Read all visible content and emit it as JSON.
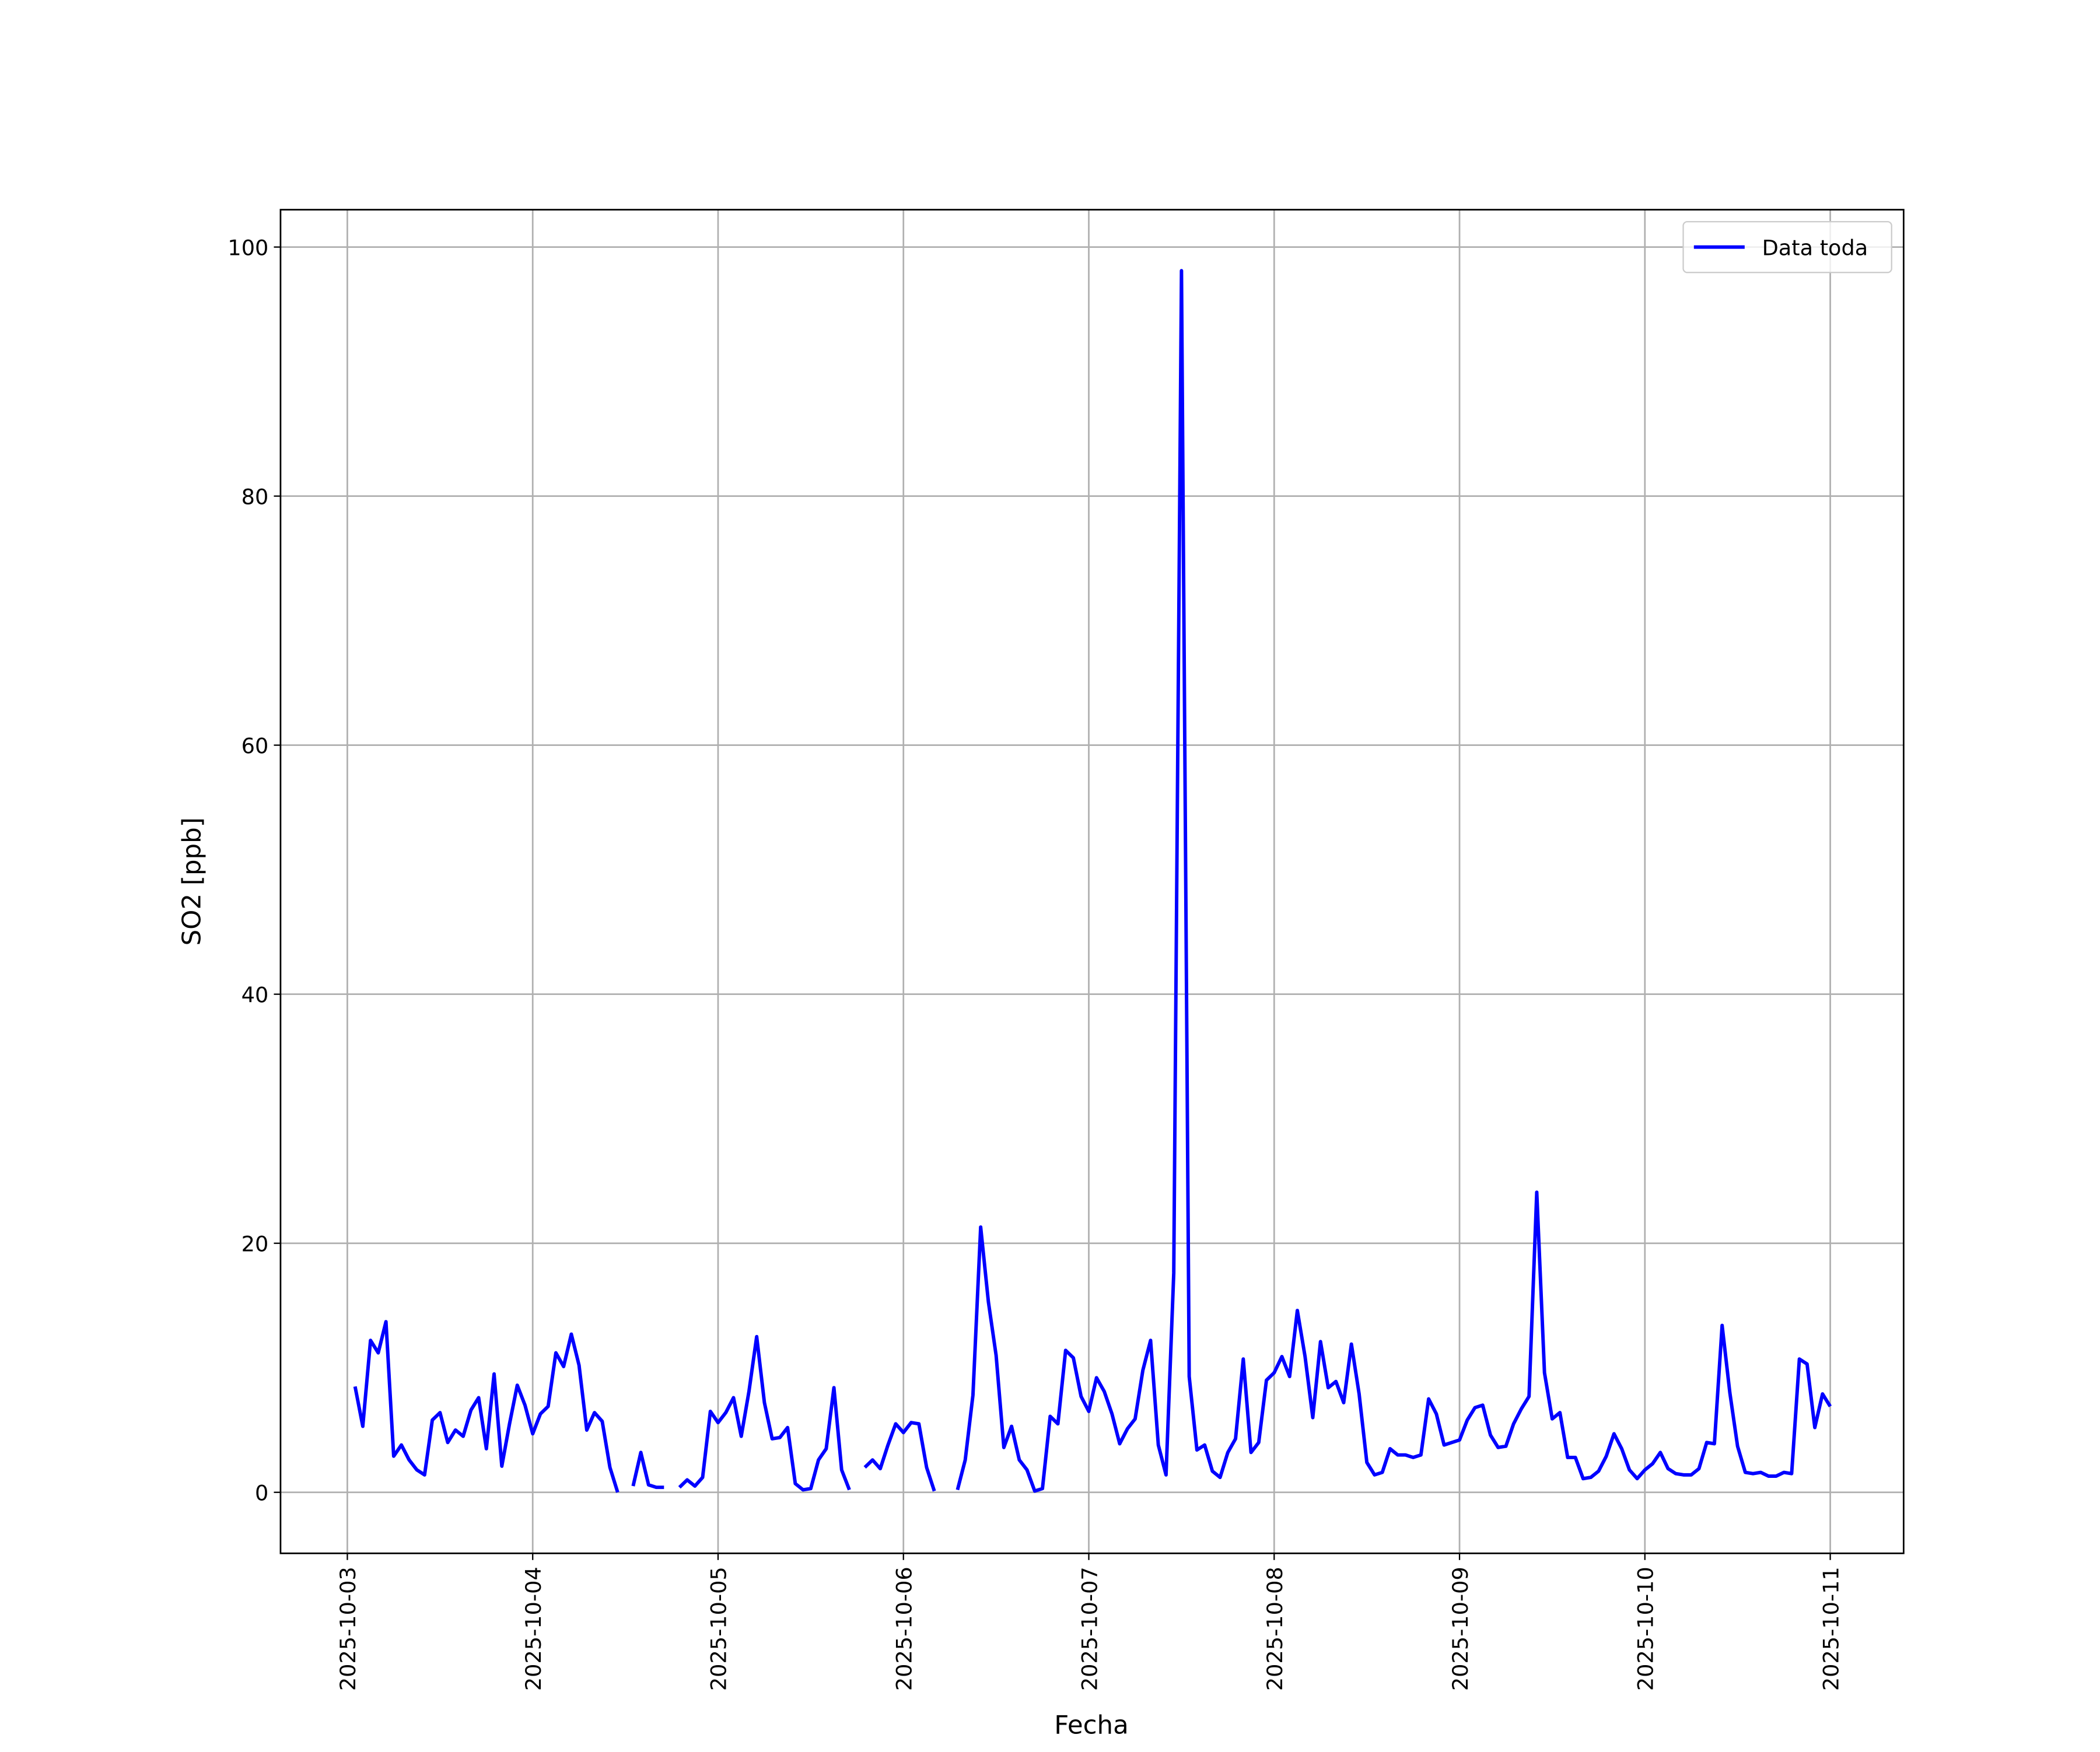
{
  "chart_data": {
    "type": "line",
    "xlabel": "Fecha",
    "ylabel": "SO2 [ppb]",
    "x": [
      "2025-10-03 01:00",
      "2025-10-03 02:00",
      "2025-10-03 03:00",
      "2025-10-03 04:00",
      "2025-10-03 05:00",
      "2025-10-03 06:00",
      "2025-10-03 07:00",
      "2025-10-03 08:00",
      "2025-10-03 09:00",
      "2025-10-03 10:00",
      "2025-10-03 11:00",
      "2025-10-03 12:00",
      "2025-10-03 13:00",
      "2025-10-03 14:00",
      "2025-10-03 15:00",
      "2025-10-03 16:00",
      "2025-10-03 17:00",
      "2025-10-03 18:00",
      "2025-10-03 19:00",
      "2025-10-03 20:00",
      "2025-10-03 21:00",
      "2025-10-03 22:00",
      "2025-10-03 23:00",
      "2025-10-04 00:00",
      "2025-10-04 01:00",
      "2025-10-04 02:00",
      "2025-10-04 03:00",
      "2025-10-04 04:00",
      "2025-10-04 05:00",
      "2025-10-04 06:00",
      "2025-10-04 07:00",
      "2025-10-04 08:00",
      "2025-10-04 09:00",
      "2025-10-04 10:00",
      "2025-10-04 11:00",
      "2025-10-04 12:00",
      "2025-10-04 13:00",
      "2025-10-04 14:00",
      "2025-10-04 15:00",
      "2025-10-04 16:00",
      "2025-10-04 17:00",
      "2025-10-04 18:00",
      "2025-10-04 19:00",
      "2025-10-04 20:00",
      "2025-10-04 21:00",
      "2025-10-04 22:00",
      "2025-10-04 23:00",
      "2025-10-05 00:00",
      "2025-10-05 01:00",
      "2025-10-05 02:00",
      "2025-10-05 03:00",
      "2025-10-05 04:00",
      "2025-10-05 05:00",
      "2025-10-05 06:00",
      "2025-10-05 07:00",
      "2025-10-05 08:00",
      "2025-10-05 09:00",
      "2025-10-05 10:00",
      "2025-10-05 11:00",
      "2025-10-05 12:00",
      "2025-10-05 13:00",
      "2025-10-05 14:00",
      "2025-10-05 15:00",
      "2025-10-05 16:00",
      "2025-10-05 17:00",
      "2025-10-05 18:00",
      "2025-10-05 19:00",
      "2025-10-05 20:00",
      "2025-10-05 21:00",
      "2025-10-05 22:00",
      "2025-10-05 23:00",
      "2025-10-06 00:00",
      "2025-10-06 01:00",
      "2025-10-06 02:00",
      "2025-10-06 03:00",
      "2025-10-06 04:00",
      "2025-10-06 05:00",
      "2025-10-06 06:00",
      "2025-10-06 07:00",
      "2025-10-06 08:00",
      "2025-10-06 09:00",
      "2025-10-06 10:00",
      "2025-10-06 11:00",
      "2025-10-06 12:00",
      "2025-10-06 13:00",
      "2025-10-06 14:00",
      "2025-10-06 15:00",
      "2025-10-06 16:00",
      "2025-10-06 17:00",
      "2025-10-06 18:00",
      "2025-10-06 19:00",
      "2025-10-06 20:00",
      "2025-10-06 21:00",
      "2025-10-06 22:00",
      "2025-10-06 23:00",
      "2025-10-07 00:00",
      "2025-10-07 01:00",
      "2025-10-07 02:00",
      "2025-10-07 03:00",
      "2025-10-07 04:00",
      "2025-10-07 05:00",
      "2025-10-07 06:00",
      "2025-10-07 07:00",
      "2025-10-07 08:00",
      "2025-10-07 09:00",
      "2025-10-07 10:00",
      "2025-10-07 11:00",
      "2025-10-07 12:00",
      "2025-10-07 13:00",
      "2025-10-07 14:00",
      "2025-10-07 15:00",
      "2025-10-07 16:00",
      "2025-10-07 17:00",
      "2025-10-07 18:00",
      "2025-10-07 19:00",
      "2025-10-07 20:00",
      "2025-10-07 21:00",
      "2025-10-07 22:00",
      "2025-10-07 23:00",
      "2025-10-08 00:00",
      "2025-10-08 01:00",
      "2025-10-08 02:00",
      "2025-10-08 03:00",
      "2025-10-08 04:00",
      "2025-10-08 05:00",
      "2025-10-08 06:00",
      "2025-10-08 07:00",
      "2025-10-08 08:00",
      "2025-10-08 09:00",
      "2025-10-08 10:00",
      "2025-10-08 11:00",
      "2025-10-08 12:00",
      "2025-10-08 13:00",
      "2025-10-08 14:00",
      "2025-10-08 15:00",
      "2025-10-08 16:00",
      "2025-10-08 17:00",
      "2025-10-08 18:00",
      "2025-10-08 19:00",
      "2025-10-08 20:00",
      "2025-10-08 21:00",
      "2025-10-08 22:00",
      "2025-10-08 23:00",
      "2025-10-09 00:00",
      "2025-10-09 01:00",
      "2025-10-09 02:00",
      "2025-10-09 03:00",
      "2025-10-09 04:00",
      "2025-10-09 05:00",
      "2025-10-09 06:00",
      "2025-10-09 07:00",
      "2025-10-09 08:00",
      "2025-10-09 09:00",
      "2025-10-09 10:00",
      "2025-10-09 11:00",
      "2025-10-09 12:00",
      "2025-10-09 13:00",
      "2025-10-09 14:00",
      "2025-10-09 15:00",
      "2025-10-09 16:00",
      "2025-10-09 17:00",
      "2025-10-09 18:00",
      "2025-10-09 19:00",
      "2025-10-09 20:00",
      "2025-10-09 21:00",
      "2025-10-09 22:00",
      "2025-10-09 23:00",
      "2025-10-10 00:00",
      "2025-10-10 01:00",
      "2025-10-10 02:00",
      "2025-10-10 03:00",
      "2025-10-10 04:00",
      "2025-10-10 05:00",
      "2025-10-10 06:00",
      "2025-10-10 07:00",
      "2025-10-10 08:00",
      "2025-10-10 09:00",
      "2025-10-10 10:00",
      "2025-10-10 11:00",
      "2025-10-10 12:00",
      "2025-10-10 13:00",
      "2025-10-10 14:00",
      "2025-10-10 15:00",
      "2025-10-10 16:00",
      "2025-10-10 17:00",
      "2025-10-10 18:00",
      "2025-10-10 19:00",
      "2025-10-10 20:00",
      "2025-10-10 21:00",
      "2025-10-10 22:00",
      "2025-10-10 23:00",
      "2025-10-11 00:00"
    ],
    "series": [
      {
        "name": "Data toda",
        "color": "#0000ff",
        "values": [
          8.5,
          5.3,
          12.2,
          11.2,
          13.7,
          2.9,
          3.8,
          2.6,
          1.8,
          1.4,
          5.8,
          6.4,
          4.0,
          5.0,
          4.5,
          6.6,
          7.6,
          3.5,
          9.5,
          2.1,
          5.5,
          8.6,
          7.0,
          4.7,
          6.3,
          6.9,
          11.2,
          10.1,
          12.7,
          10.2,
          5.0,
          6.4,
          5.7,
          2.0,
          0.0,
          null,
          0.5,
          3.2,
          0.6,
          0.4,
          0.4,
          null,
          0.4,
          1.0,
          0.5,
          1.2,
          6.5,
          5.6,
          6.4,
          7.6,
          4.5,
          8.1,
          12.5,
          7.2,
          4.3,
          4.4,
          5.2,
          0.7,
          0.2,
          0.3,
          2.6,
          3.5,
          8.4,
          1.8,
          0.2,
          null,
          2.0,
          2.6,
          1.9,
          3.8,
          5.5,
          4.8,
          5.6,
          5.5,
          2.0,
          0.1,
          null,
          null,
          0.2,
          2.6,
          7.8,
          21.3,
          15.3,
          11.0,
          3.6,
          5.3,
          2.6,
          1.8,
          0.1,
          0.3,
          6.1,
          5.5,
          11.4,
          10.8,
          7.7,
          6.5,
          9.2,
          8.1,
          6.3,
          3.9,
          5.1,
          5.9,
          9.8,
          12.2,
          3.8,
          1.4,
          17.6,
          98.1,
          9.3,
          3.4,
          3.8,
          1.7,
          1.2,
          3.2,
          4.3,
          10.7,
          3.2,
          4.0,
          9.0,
          9.6,
          10.9,
          9.3,
          14.6,
          10.9,
          6.0,
          12.1,
          8.4,
          8.9,
          7.2,
          11.9,
          7.9,
          2.4,
          1.4,
          1.6,
          3.5,
          3.0,
          3.0,
          2.8,
          3.0,
          7.5,
          6.3,
          3.8,
          4.0,
          4.2,
          5.8,
          6.8,
          7.0,
          4.6,
          3.6,
          3.7,
          5.5,
          6.7,
          7.7,
          24.1,
          9.6,
          5.9,
          6.4,
          2.8,
          2.8,
          1.1,
          1.2,
          1.7,
          2.9,
          4.7,
          3.5,
          1.8,
          1.1,
          1.8,
          2.3,
          3.2,
          1.9,
          1.5,
          1.4,
          1.4,
          1.9,
          4.0,
          3.9,
          13.4,
          8.0,
          3.7,
          1.6,
          1.5,
          1.6,
          1.3,
          1.3,
          1.6,
          1.5,
          10.7,
          10.3,
          5.2,
          7.9,
          6.9
        ]
      }
    ],
    "xlim": [
      "2025-10-02 15:21",
      "2025-10-11 09:30"
    ],
    "xticks": [
      "2025-10-03",
      "2025-10-04",
      "2025-10-05",
      "2025-10-06",
      "2025-10-07",
      "2025-10-08",
      "2025-10-09",
      "2025-10-10",
      "2025-10-11"
    ],
    "ylim": [
      -4.9,
      103.0
    ],
    "yticks": [
      0,
      20,
      40,
      60,
      80,
      100
    ],
    "grid": true,
    "legend": "upper right"
  }
}
